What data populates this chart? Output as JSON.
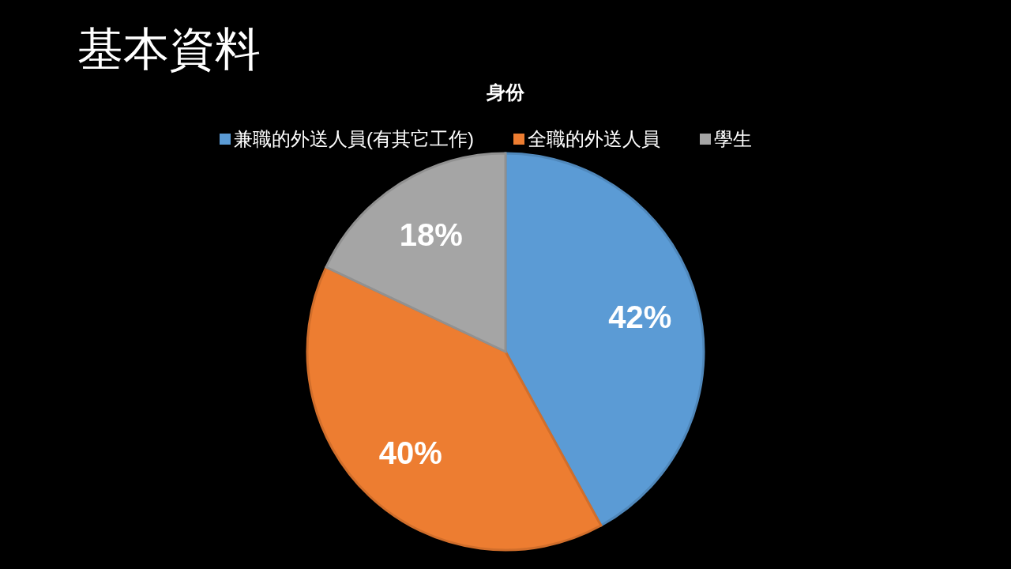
{
  "chart_data": {
    "type": "pie",
    "title": "基本資料",
    "subtitle": "身份",
    "categories": [
      "兼職的外送人員(有其它工作)",
      "全職的外送人員",
      "學生"
    ],
    "values": [
      42,
      40,
      18
    ],
    "colors": [
      "#5b9bd5",
      "#ed7d31",
      "#a5a5a5"
    ],
    "value_labels": [
      "42%",
      "40%",
      "18%"
    ],
    "legend": "top"
  }
}
